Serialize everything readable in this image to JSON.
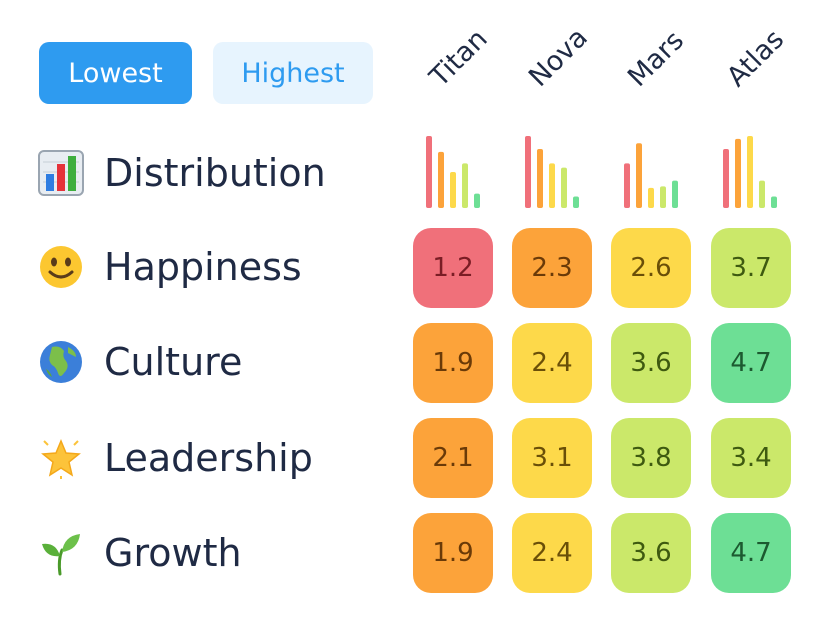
{
  "filters": {
    "lowest": "Lowest",
    "highest": "Highest"
  },
  "columns": [
    "Titan",
    "Nova",
    "Mars",
    "Atlas"
  ],
  "rows": [
    {
      "label": "Distribution",
      "icon": "bar-chart-icon"
    },
    {
      "label": "Happiness",
      "icon": "smiley-face-icon"
    },
    {
      "label": "Culture",
      "icon": "globe-icon"
    },
    {
      "label": "Leadership",
      "icon": "glowing-star-icon"
    },
    {
      "label": "Growth",
      "icon": "seedling-icon"
    }
  ],
  "scores": [
    [
      "1.2",
      "2.3",
      "2.6",
      "3.7"
    ],
    [
      "1.9",
      "2.4",
      "3.6",
      "4.7"
    ],
    [
      "2.1",
      "3.1",
      "3.8",
      "3.4"
    ],
    [
      "1.9",
      "2.4",
      "3.6",
      "4.7"
    ]
  ],
  "distribution": [
    [
      1.0,
      0.78,
      0.5,
      0.62,
      0.2
    ],
    [
      1.0,
      0.82,
      0.62,
      0.56,
      0.16
    ],
    [
      0.62,
      0.9,
      0.28,
      0.3,
      0.38
    ],
    [
      0.82,
      0.96,
      1.0,
      0.38,
      0.16
    ]
  ],
  "colors": {
    "red": "#f0707a",
    "orange": "#fca33a",
    "yellow": "#fdd94a",
    "lightgreen": "#cbe86a",
    "green": "#6ddf95",
    "bar_colors": [
      "#f0707a",
      "#fca33a",
      "#fdd94a",
      "#cbe86a",
      "#6ddf95"
    ]
  }
}
